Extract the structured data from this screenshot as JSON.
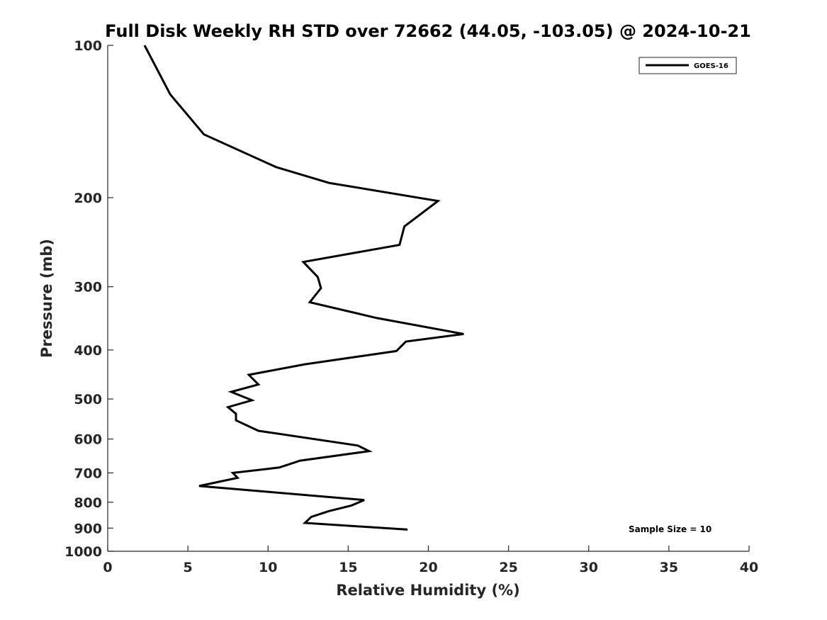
{
  "chart_data": {
    "type": "line",
    "title": "Full Disk Weekly RH STD over 72662 (44.05, -103.05) @ 2024-10-21",
    "xlabel": "Relative Humidity (%)",
    "ylabel": "Pressure (mb)",
    "xlim": [
      0,
      40
    ],
    "ylim": [
      100,
      1000
    ],
    "y_scale": "log",
    "y_reversed": true,
    "x_ticks": [
      0,
      5,
      10,
      15,
      20,
      25,
      30,
      35,
      40
    ],
    "y_ticks": [
      100,
      200,
      300,
      400,
      500,
      600,
      700,
      800,
      900,
      1000
    ],
    "grid": false,
    "legend_position": "top-right",
    "annotation": "Sample Size = 10",
    "series": [
      {
        "name": "GOES-16",
        "color": "#000000",
        "points": [
          [
            2.3,
            100
          ],
          [
            3.9,
            125
          ],
          [
            6.0,
            150
          ],
          [
            10.5,
            174
          ],
          [
            13.8,
            187
          ],
          [
            20.6,
            203
          ],
          [
            18.5,
            228
          ],
          [
            18.2,
            248
          ],
          [
            12.2,
            268
          ],
          [
            13.1,
            287
          ],
          [
            13.3,
            302
          ],
          [
            12.6,
            322
          ],
          [
            16.8,
            346
          ],
          [
            22.2,
            372
          ],
          [
            18.6,
            385
          ],
          [
            18.0,
            402
          ],
          [
            12.3,
            427
          ],
          [
            8.8,
            448
          ],
          [
            9.4,
            468
          ],
          [
            7.7,
            484
          ],
          [
            9.0,
            503
          ],
          [
            7.5,
            519
          ],
          [
            8.0,
            535
          ],
          [
            8.0,
            551
          ],
          [
            9.4,
            578
          ],
          [
            15.6,
            618
          ],
          [
            16.3,
            634
          ],
          [
            12.0,
            662
          ],
          [
            10.7,
            683
          ],
          [
            7.8,
            700
          ],
          [
            8.1,
            716
          ],
          [
            5.7,
            743
          ],
          [
            10.0,
            763
          ],
          [
            16.0,
            792
          ],
          [
            15.2,
            812
          ],
          [
            13.8,
            833
          ],
          [
            12.7,
            855
          ],
          [
            12.3,
            879
          ],
          [
            18.7,
            906
          ]
        ]
      }
    ]
  }
}
